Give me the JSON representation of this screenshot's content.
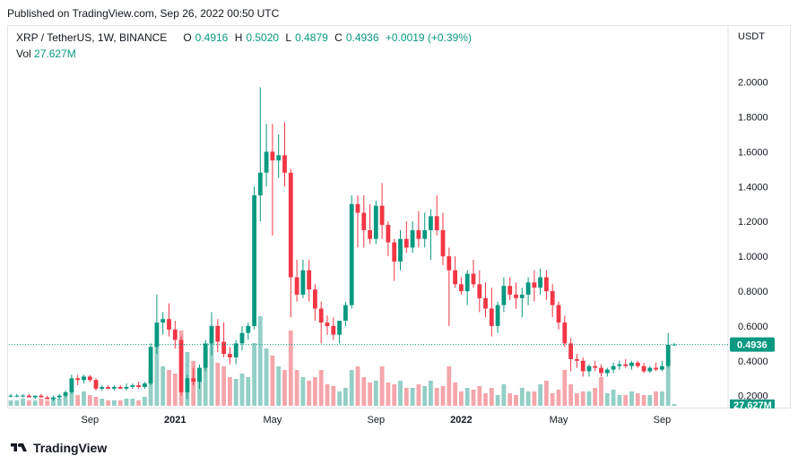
{
  "header": {
    "published": "Published on TradingView.com, Sep 26, 2022 00:50 UTC"
  },
  "legend": {
    "symbol": "XRP / TetherUS, 1W, BINANCE",
    "o_label": "O",
    "o_value": "0.4916",
    "h_label": "H",
    "h_value": "0.5020",
    "l_label": "L",
    "l_value": "0.4879",
    "c_label": "C",
    "c_value": "0.4936",
    "change": "+0.0019 (+0.39%)",
    "vol_label": "Vol",
    "vol_value": "27.627M"
  },
  "footer": {
    "brand": "TradingView"
  },
  "colors": {
    "up": "#089981",
    "down": "#f23645",
    "up_vol": "#93cfc6",
    "down_vol": "#f5a6ab",
    "price_line": "#089981"
  },
  "chart_data": {
    "type": "candlestick",
    "currency": "USDT",
    "ylim": [
      0.0,
      2.1
    ],
    "y_ticks": [
      "2.0000",
      "1.8000",
      "1.6000",
      "1.4000",
      "1.2000",
      "1.0000",
      "0.8000",
      "0.6000",
      "0.4000",
      "0.2000"
    ],
    "y_tick_values": [
      2.0,
      1.8,
      1.6,
      1.4,
      1.2,
      1.0,
      0.8,
      0.6,
      0.4,
      0.2
    ],
    "x_ticks": [
      {
        "label": "Sep",
        "index": 13
      },
      {
        "label": "2021",
        "index": 27
      },
      {
        "label": "May",
        "index": 43
      },
      {
        "label": "Sep",
        "index": 60
      },
      {
        "label": "2022",
        "index": 74
      },
      {
        "label": "May",
        "index": 90
      },
      {
        "label": "Sep",
        "index": 107
      }
    ],
    "last_price": "0.4936",
    "last_price_value": 0.4936,
    "last_volume": "27.627M",
    "candles": [
      [
        0.2,
        0.21,
        0.19,
        0.2
      ],
      [
        0.2,
        0.21,
        0.19,
        0.2
      ],
      [
        0.2,
        0.21,
        0.19,
        0.2
      ],
      [
        0.2,
        0.21,
        0.19,
        0.19
      ],
      [
        0.19,
        0.2,
        0.18,
        0.2
      ],
      [
        0.2,
        0.21,
        0.19,
        0.19
      ],
      [
        0.19,
        0.2,
        0.18,
        0.18
      ],
      [
        0.18,
        0.2,
        0.17,
        0.19
      ],
      [
        0.19,
        0.21,
        0.18,
        0.2
      ],
      [
        0.2,
        0.23,
        0.19,
        0.22
      ],
      [
        0.22,
        0.32,
        0.21,
        0.3
      ],
      [
        0.3,
        0.32,
        0.26,
        0.29
      ],
      [
        0.29,
        0.32,
        0.27,
        0.31
      ],
      [
        0.31,
        0.32,
        0.28,
        0.29
      ],
      [
        0.29,
        0.3,
        0.23,
        0.24
      ],
      [
        0.24,
        0.26,
        0.23,
        0.25
      ],
      [
        0.25,
        0.26,
        0.24,
        0.24
      ],
      [
        0.24,
        0.26,
        0.23,
        0.25
      ],
      [
        0.25,
        0.26,
        0.24,
        0.24
      ],
      [
        0.24,
        0.27,
        0.23,
        0.25
      ],
      [
        0.25,
        0.27,
        0.24,
        0.26
      ],
      [
        0.26,
        0.28,
        0.24,
        0.25
      ],
      [
        0.25,
        0.28,
        0.24,
        0.27
      ],
      [
        0.27,
        0.5,
        0.26,
        0.48
      ],
      [
        0.48,
        0.78,
        0.44,
        0.62
      ],
      [
        0.62,
        0.68,
        0.55,
        0.64
      ],
      [
        0.64,
        0.73,
        0.54,
        0.58
      ],
      [
        0.58,
        0.63,
        0.47,
        0.52
      ],
      [
        0.52,
        0.54,
        0.2,
        0.22
      ],
      [
        0.22,
        0.32,
        0.18,
        0.3
      ],
      [
        0.3,
        0.36,
        0.26,
        0.28
      ],
      [
        0.28,
        0.38,
        0.24,
        0.36
      ],
      [
        0.36,
        0.52,
        0.34,
        0.5
      ],
      [
        0.5,
        0.68,
        0.43,
        0.6
      ],
      [
        0.6,
        0.64,
        0.45,
        0.51
      ],
      [
        0.51,
        0.62,
        0.42,
        0.44
      ],
      [
        0.44,
        0.48,
        0.38,
        0.42
      ],
      [
        0.42,
        0.52,
        0.38,
        0.5
      ],
      [
        0.5,
        0.6,
        0.46,
        0.56
      ],
      [
        0.56,
        0.62,
        0.52,
        0.6
      ],
      [
        0.6,
        1.4,
        0.58,
        1.35
      ],
      [
        1.35,
        1.97,
        1.2,
        1.48
      ],
      [
        1.48,
        1.76,
        1.4,
        1.6
      ],
      [
        1.6,
        1.76,
        1.12,
        1.55
      ],
      [
        1.55,
        1.7,
        1.45,
        1.58
      ],
      [
        1.58,
        1.77,
        1.4,
        1.48
      ],
      [
        1.48,
        1.5,
        0.65,
        0.88
      ],
      [
        0.88,
        0.98,
        0.74,
        0.78
      ],
      [
        0.78,
        0.98,
        0.76,
        0.92
      ],
      [
        0.92,
        0.98,
        0.74,
        0.81
      ],
      [
        0.81,
        0.84,
        0.63,
        0.7
      ],
      [
        0.7,
        0.74,
        0.5,
        0.62
      ],
      [
        0.62,
        0.66,
        0.55,
        0.6
      ],
      [
        0.6,
        0.65,
        0.52,
        0.55
      ],
      [
        0.55,
        0.62,
        0.5,
        0.63
      ],
      [
        0.63,
        0.74,
        0.6,
        0.72
      ],
      [
        0.72,
        1.35,
        0.7,
        1.3
      ],
      [
        1.3,
        1.35,
        1.05,
        1.25
      ],
      [
        1.25,
        1.35,
        1.05,
        1.15
      ],
      [
        1.15,
        1.3,
        1.07,
        1.1
      ],
      [
        1.1,
        1.32,
        1.07,
        1.29
      ],
      [
        1.29,
        1.42,
        1.1,
        1.18
      ],
      [
        1.18,
        1.2,
        1.0,
        1.08
      ],
      [
        1.08,
        1.1,
        0.86,
        0.97
      ],
      [
        0.97,
        1.15,
        0.92,
        1.1
      ],
      [
        1.1,
        1.2,
        1.02,
        1.05
      ],
      [
        1.05,
        1.2,
        1.02,
        1.15
      ],
      [
        1.15,
        1.26,
        1.05,
        1.1
      ],
      [
        1.1,
        1.25,
        1.05,
        1.15
      ],
      [
        1.15,
        1.27,
        0.98,
        1.23
      ],
      [
        1.23,
        1.35,
        1.12,
        1.15
      ],
      [
        1.15,
        1.25,
        0.95,
        1.0
      ],
      [
        1.0,
        1.05,
        0.6,
        0.92
      ],
      [
        0.92,
        1.0,
        0.82,
        0.84
      ],
      [
        0.84,
        0.88,
        0.78,
        0.8
      ],
      [
        0.8,
        0.92,
        0.72,
        0.9
      ],
      [
        0.9,
        0.98,
        0.82,
        0.84
      ],
      [
        0.84,
        0.92,
        0.68,
        0.76
      ],
      [
        0.76,
        0.85,
        0.65,
        0.7
      ],
      [
        0.7,
        0.82,
        0.54,
        0.6
      ],
      [
        0.6,
        0.74,
        0.56,
        0.72
      ],
      [
        0.72,
        0.88,
        0.68,
        0.83
      ],
      [
        0.83,
        0.88,
        0.75,
        0.78
      ],
      [
        0.78,
        0.85,
        0.7,
        0.76
      ],
      [
        0.76,
        0.82,
        0.65,
        0.78
      ],
      [
        0.78,
        0.88,
        0.72,
        0.85
      ],
      [
        0.85,
        0.92,
        0.74,
        0.82
      ],
      [
        0.82,
        0.93,
        0.78,
        0.88
      ],
      [
        0.88,
        0.92,
        0.75,
        0.8
      ],
      [
        0.8,
        0.84,
        0.65,
        0.72
      ],
      [
        0.72,
        0.74,
        0.58,
        0.62
      ],
      [
        0.62,
        0.66,
        0.48,
        0.5
      ],
      [
        0.5,
        0.53,
        0.34,
        0.41
      ],
      [
        0.41,
        0.44,
        0.36,
        0.4
      ],
      [
        0.4,
        0.42,
        0.31,
        0.34
      ],
      [
        0.34,
        0.38,
        0.31,
        0.37
      ],
      [
        0.37,
        0.4,
        0.34,
        0.36
      ],
      [
        0.36,
        0.38,
        0.31,
        0.33
      ],
      [
        0.33,
        0.36,
        0.31,
        0.35
      ],
      [
        0.35,
        0.39,
        0.33,
        0.37
      ],
      [
        0.37,
        0.4,
        0.35,
        0.38
      ],
      [
        0.38,
        0.41,
        0.36,
        0.37
      ],
      [
        0.37,
        0.4,
        0.35,
        0.39
      ],
      [
        0.39,
        0.4,
        0.36,
        0.37
      ],
      [
        0.37,
        0.39,
        0.33,
        0.34
      ],
      [
        0.34,
        0.37,
        0.33,
        0.36
      ],
      [
        0.36,
        0.39,
        0.34,
        0.35
      ],
      [
        0.35,
        0.4,
        0.34,
        0.37
      ],
      [
        0.37,
        0.56,
        0.36,
        0.4916
      ],
      [
        0.4916,
        0.502,
        0.4879,
        0.4936
      ]
    ],
    "volumes": [
      0.03,
      0.03,
      0.04,
      0.03,
      0.03,
      0.04,
      0.03,
      0.04,
      0.04,
      0.06,
      0.09,
      0.06,
      0.08,
      0.06,
      0.05,
      0.04,
      0.03,
      0.03,
      0.03,
      0.04,
      0.04,
      0.03,
      0.05,
      0.18,
      0.35,
      0.22,
      0.2,
      0.18,
      0.42,
      0.3,
      0.25,
      0.2,
      0.32,
      0.38,
      0.24,
      0.22,
      0.16,
      0.15,
      0.18,
      0.16,
      0.35,
      0.5,
      0.32,
      0.28,
      0.22,
      0.2,
      0.42,
      0.2,
      0.16,
      0.14,
      0.16,
      0.2,
      0.12,
      0.11,
      0.08,
      0.1,
      0.2,
      0.22,
      0.16,
      0.13,
      0.14,
      0.22,
      0.13,
      0.12,
      0.14,
      0.1,
      0.1,
      0.12,
      0.11,
      0.14,
      0.1,
      0.11,
      0.22,
      0.13,
      0.08,
      0.1,
      0.09,
      0.11,
      0.07,
      0.1,
      0.06,
      0.12,
      0.07,
      0.06,
      0.1,
      0.08,
      0.08,
      0.12,
      0.14,
      0.07,
      0.09,
      0.2,
      0.12,
      0.07,
      0.08,
      0.08,
      0.1,
      0.16,
      0.07,
      0.09,
      0.06,
      0.06,
      0.08,
      0.07,
      0.06,
      0.06,
      0.08,
      0.08,
      0.22,
      0.01
    ]
  }
}
